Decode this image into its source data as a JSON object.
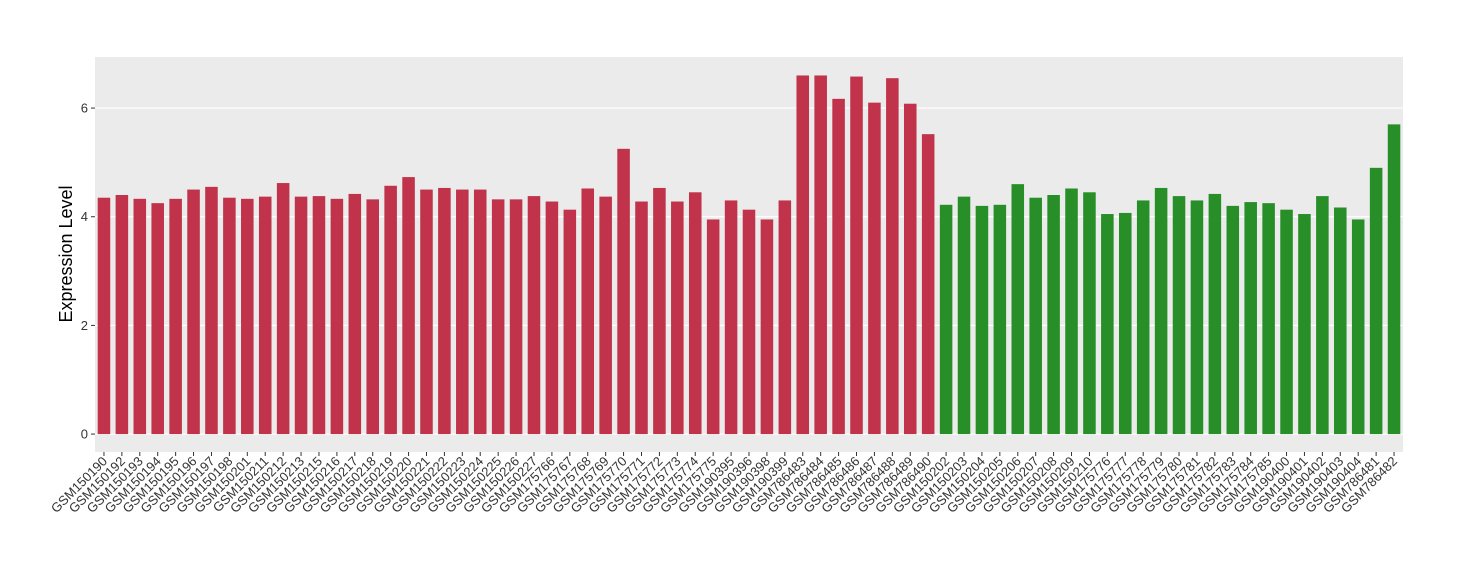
{
  "chart_data": {
    "type": "bar",
    "y_label": "Expression Level",
    "categories": [
      "GSM150190",
      "GSM150192",
      "GSM150193",
      "GSM150194",
      "GSM150195",
      "GSM150196",
      "GSM150197",
      "GSM150198",
      "GSM150201",
      "GSM150211",
      "GSM150212",
      "GSM150213",
      "GSM150215",
      "GSM150216",
      "GSM150217",
      "GSM150218",
      "GSM150219",
      "GSM150220",
      "GSM150221",
      "GSM150222",
      "GSM150223",
      "GSM150224",
      "GSM150225",
      "GSM150226",
      "GSM150227",
      "GSM175766",
      "GSM175767",
      "GSM175768",
      "GSM175769",
      "GSM175770",
      "GSM175771",
      "GSM175772",
      "GSM175773",
      "GSM175774",
      "GSM175775",
      "GSM190395",
      "GSM190396",
      "GSM190398",
      "GSM190399",
      "GSM786483",
      "GSM786484",
      "GSM786485",
      "GSM786486",
      "GSM786487",
      "GSM786488",
      "GSM786489",
      "GSM786490",
      "GSM150202",
      "GSM150203",
      "GSM150204",
      "GSM150205",
      "GSM150206",
      "GSM150207",
      "GSM150208",
      "GSM150209",
      "GSM150210",
      "GSM175776",
      "GSM175777",
      "GSM175778",
      "GSM175779",
      "GSM175780",
      "GSM175781",
      "GSM175782",
      "GSM175783",
      "GSM175784",
      "GSM175785",
      "GSM190400",
      "GSM190401",
      "GSM190402",
      "GSM190403",
      "GSM190404",
      "GSM786481",
      "GSM786482"
    ],
    "series": [
      {
        "color": "#c0334a",
        "values": [
          4.35,
          4.4,
          4.33,
          4.25,
          4.33,
          4.5,
          4.55,
          4.35,
          4.33,
          4.37,
          4.62,
          4.37,
          4.38,
          4.33,
          4.42,
          4.32,
          4.57,
          4.73,
          4.5,
          4.53,
          4.5,
          4.5,
          4.32,
          4.32,
          4.38,
          4.28,
          4.13,
          4.52,
          4.37,
          5.25,
          4.28,
          4.53,
          4.28,
          4.45,
          3.95,
          4.3,
          4.13,
          3.95,
          4.3,
          6.6,
          6.6,
          6.17,
          6.58,
          6.1,
          6.55,
          6.08,
          5.52,
          null,
          null,
          null,
          null,
          null,
          null,
          null,
          null,
          null,
          null,
          null,
          null,
          null,
          null,
          null,
          null,
          null,
          null,
          null,
          null,
          null,
          null,
          null,
          null,
          null,
          null
        ]
      },
      {
        "color": "#288f28",
        "values": [
          null,
          null,
          null,
          null,
          null,
          null,
          null,
          null,
          null,
          null,
          null,
          null,
          null,
          null,
          null,
          null,
          null,
          null,
          null,
          null,
          null,
          null,
          null,
          null,
          null,
          null,
          null,
          null,
          null,
          null,
          null,
          null,
          null,
          null,
          null,
          null,
          null,
          null,
          null,
          null,
          null,
          null,
          null,
          null,
          null,
          null,
          null,
          4.22,
          4.37,
          4.2,
          4.22,
          4.6,
          4.35,
          4.4,
          4.52,
          4.45,
          4.05,
          4.07,
          4.3,
          4.53,
          4.38,
          4.3,
          4.42,
          4.2,
          4.27,
          4.25,
          4.13,
          4.05,
          4.38,
          4.17,
          3.95,
          4.9,
          5.7
        ]
      }
    ],
    "ylim": [
      -0.33,
      6.94
    ],
    "yticks": [
      0,
      2,
      4,
      6
    ],
    "grid": true
  }
}
